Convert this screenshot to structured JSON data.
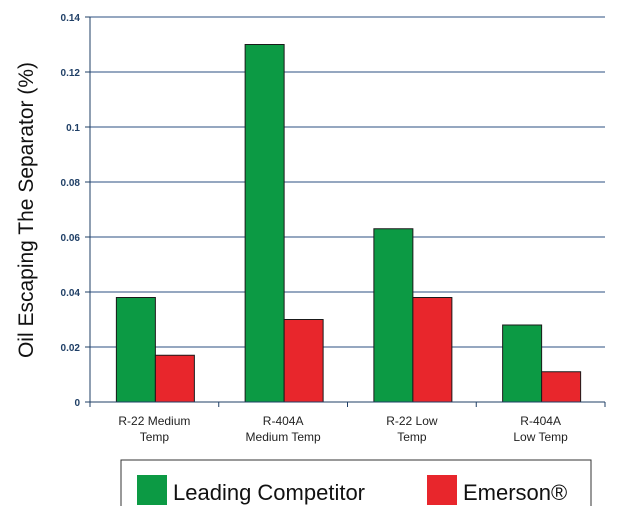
{
  "chart_data": {
    "type": "bar",
    "title": "",
    "xlabel": "",
    "ylabel": "Oil Escaping The Separator (%)",
    "ylim": [
      0,
      0.14
    ],
    "yticks": [
      "0",
      "0.02",
      "0.04",
      "0.06",
      "0.08",
      "0.1",
      "0.12",
      "0.14"
    ],
    "grid": true,
    "legend_position": "bottom",
    "categories": [
      [
        "R-22 Medium",
        "Temp"
      ],
      [
        "R-404A",
        "Medium Temp"
      ],
      [
        "R-22 Low",
        "Temp"
      ],
      [
        "R-404A",
        "Low Temp"
      ]
    ],
    "series": [
      {
        "name": "Leading Competitor",
        "color": "#0c9a44",
        "values": [
          0.038,
          0.13,
          0.063,
          0.028
        ]
      },
      {
        "name": "Emerson®",
        "color": "#e8262c",
        "values": [
          0.017,
          0.03,
          0.038,
          0.011
        ]
      }
    ],
    "colors": {
      "grid": "#2b4f80",
      "axis": "#1f3f66",
      "bar_outline": "#1a1a1a"
    }
  }
}
